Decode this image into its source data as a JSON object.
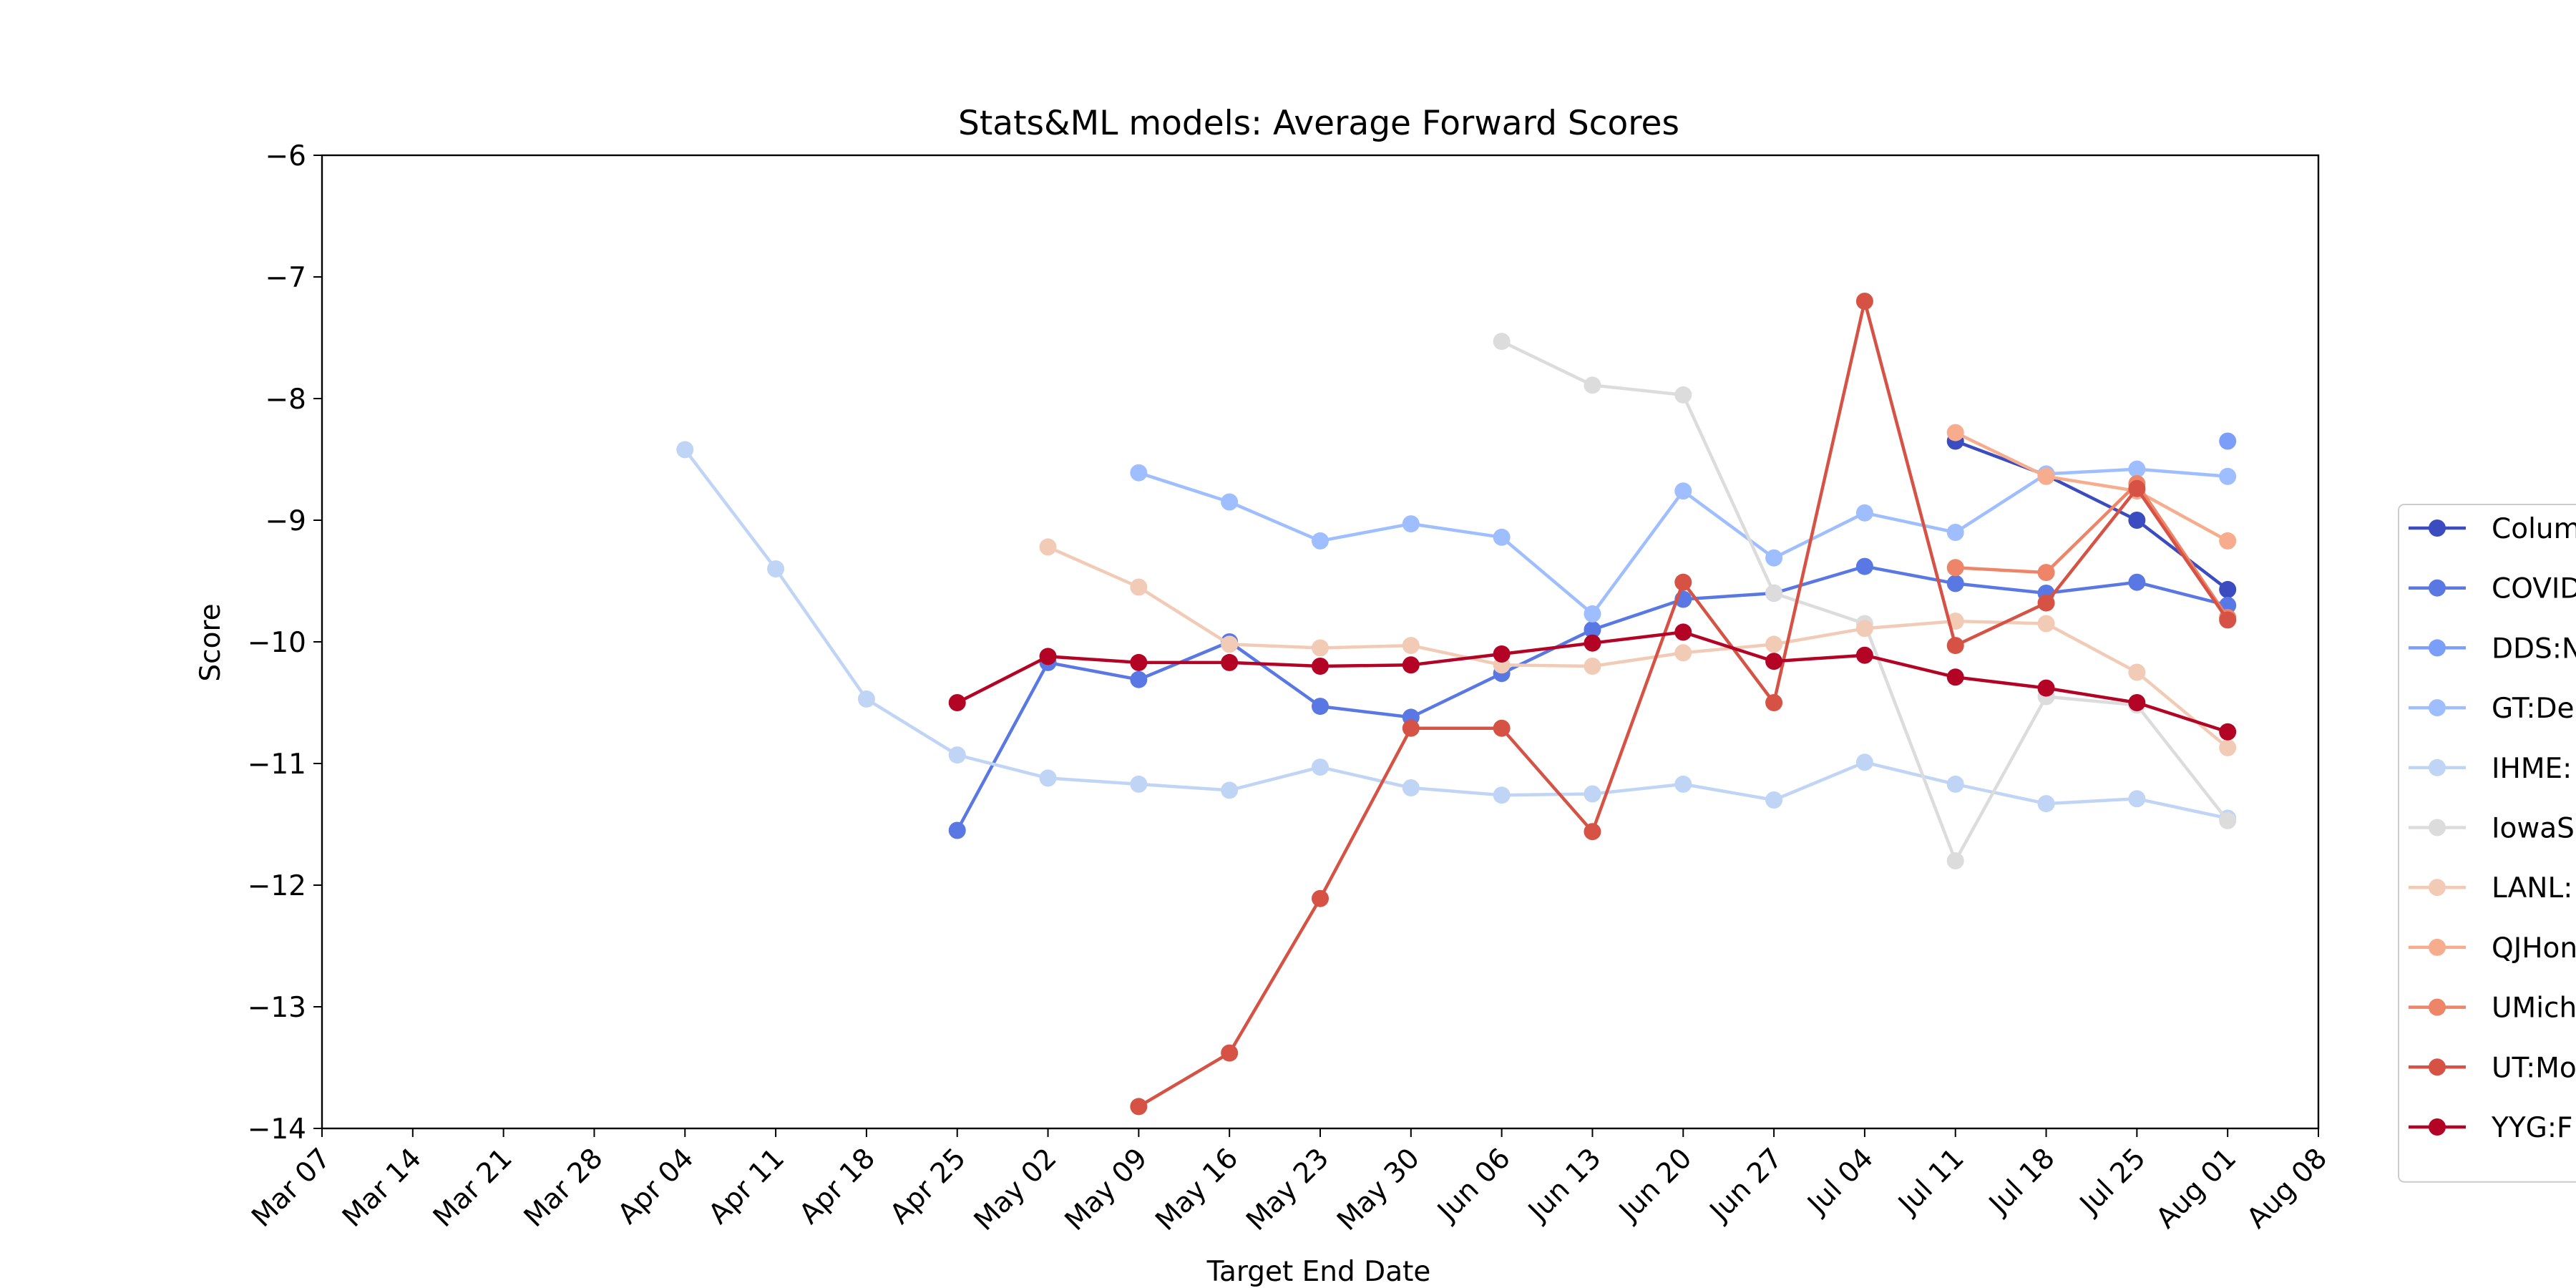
{
  "chart_data": {
    "type": "line",
    "title": "Stats&ML models: Average Forward Scores",
    "xlabel": "Target End Date",
    "ylabel": "Score",
    "ylim": [
      -14,
      -6
    ],
    "y_ticks": [
      -6,
      -7,
      -8,
      -9,
      -10,
      -11,
      -12,
      -13,
      -14
    ],
    "x_ticks": [
      "Mar 07",
      "Mar 14",
      "Mar 21",
      "Mar 28",
      "Apr 04",
      "Apr 11",
      "Apr 18",
      "Apr 25",
      "May 02",
      "May 09",
      "May 16",
      "May 23",
      "May 30",
      "Jun 06",
      "Jun 13",
      "Jun 20",
      "Jun 27",
      "Jul 04",
      "Jul 11",
      "Jul 18",
      "Jul 25",
      "Aug 01",
      "Aug 08"
    ],
    "grid": false,
    "legend_position": "right, outside plot (clipped)",
    "series": [
      {
        "name": "Colum",
        "color": "#3b4cc0",
        "x": [
          "Jul 11",
          "Jul 18",
          "Jul 25",
          "Aug 01"
        ],
        "values": [
          -8.35,
          -8.63,
          -9.0,
          -9.57
        ]
      },
      {
        "name": "COVID",
        "color": "#5a78e4",
        "x": [
          "Apr 25",
          "May 02",
          "May 09",
          "May 16",
          "May 23",
          "May 30",
          "Jun 06",
          "Jun 13",
          "Jun 20",
          "Jun 27",
          "Jul 04",
          "Jul 11",
          "Jul 18",
          "Jul 25",
          "Aug 01"
        ],
        "values": [
          -11.55,
          -10.17,
          -10.31,
          -10.0,
          -10.53,
          -10.62,
          -10.26,
          -9.9,
          -9.65,
          -9.6,
          -9.38,
          -9.52,
          -9.6,
          -9.51,
          -9.7
        ]
      },
      {
        "name": "DDS:N",
        "color": "#7b9ff9",
        "x": [
          "Aug 01"
        ],
        "values": [
          -8.35
        ]
      },
      {
        "name": "GT:De",
        "color": "#9ebeff",
        "x": [
          "May 09",
          "May 16",
          "May 23",
          "May 30",
          "Jun 06",
          "Jun 13",
          "Jun 20",
          "Jun 27",
          "Jul 04",
          "Jul 11",
          "Jul 18",
          "Jul 25",
          "Aug 01"
        ],
        "values": [
          -8.61,
          -8.85,
          -9.17,
          -9.03,
          -9.14,
          -9.77,
          -8.76,
          -9.31,
          -8.94,
          -9.1,
          -8.62,
          -8.58,
          -8.64
        ]
      },
      {
        "name": "IHME:",
        "color": "#c0d4f5",
        "x": [
          "Apr 04",
          "Apr 11",
          "Apr 18",
          "Apr 25",
          "May 02",
          "May 09",
          "May 16",
          "May 23",
          "May 30",
          "Jun 06",
          "Jun 13",
          "Jun 20",
          "Jun 27",
          "Jul 04",
          "Jul 11",
          "Jul 18",
          "Jul 25",
          "Aug 01"
        ],
        "values": [
          -8.42,
          -9.4,
          -10.47,
          -10.93,
          -11.12,
          -11.17,
          -11.22,
          -11.03,
          -11.2,
          -11.26,
          -11.25,
          -11.17,
          -11.3,
          -10.99,
          -11.17,
          -11.33,
          -11.29,
          -11.45
        ]
      },
      {
        "name": "IowaS",
        "color": "#dddcdc",
        "x": [
          "Jun 06",
          "Jun 13",
          "Jun 20",
          "Jun 27",
          "Jul 04",
          "Jul 11",
          "Jul 18",
          "Jul 25",
          "Aug 01"
        ],
        "values": [
          -7.53,
          -7.89,
          -7.97,
          -9.6,
          -9.85,
          -11.8,
          -10.45,
          -10.52,
          -11.47
        ]
      },
      {
        "name": "LANL:",
        "color": "#f2cbb7",
        "x": [
          "May 02",
          "May 09",
          "May 16",
          "May 23",
          "May 30",
          "Jun 06",
          "Jun 13",
          "Jun 20",
          "Jun 27",
          "Jul 04",
          "Jul 11",
          "Jul 18",
          "Jul 25",
          "Aug 01"
        ],
        "values": [
          -9.22,
          -9.55,
          -10.02,
          -10.05,
          -10.03,
          -10.19,
          -10.2,
          -10.09,
          -10.02,
          -9.89,
          -9.83,
          -9.85,
          -10.25,
          -10.87
        ]
      },
      {
        "name": "QJHon",
        "color": "#f7ac8e",
        "x": [
          "Jul 11",
          "Jul 18",
          "Jul 25",
          "Aug 01"
        ],
        "values": [
          -8.28,
          -8.64,
          -8.76,
          -9.17
        ]
      },
      {
        "name": "UMich",
        "color": "#ee8468",
        "x": [
          "Jul 11",
          "Jul 18",
          "Jul 25",
          "Aug 01"
        ],
        "values": [
          -9.39,
          -9.43,
          -8.7,
          -9.8
        ]
      },
      {
        "name": "UT:Mo",
        "color": "#d65244",
        "x": [
          "May 09",
          "May 16",
          "May 23",
          "May 30",
          "Jun 06",
          "Jun 13",
          "Jun 20",
          "Jun 27",
          "Jul 04",
          "Jul 11",
          "Jul 18",
          "Jul 25",
          "Aug 01"
        ],
        "values": [
          -13.82,
          -13.38,
          -12.11,
          -10.71,
          -10.71,
          -11.56,
          -9.51,
          -10.5,
          -7.2,
          -10.03,
          -9.68,
          -8.74,
          -9.82
        ]
      },
      {
        "name": "YYG:F",
        "color": "#b40426",
        "x": [
          "Apr 25",
          "May 02",
          "May 09",
          "May 16",
          "May 23",
          "May 30",
          "Jun 06",
          "Jun 13",
          "Jun 20",
          "Jun 27",
          "Jul 04",
          "Jul 11",
          "Jul 18",
          "Jul 25",
          "Aug 01"
        ],
        "values": [
          -10.5,
          -10.12,
          -10.17,
          -10.17,
          -10.2,
          -10.19,
          -10.1,
          -10.01,
          -9.92,
          -10.16,
          -10.11,
          -10.29,
          -10.38,
          -10.5,
          -10.74
        ]
      }
    ]
  }
}
